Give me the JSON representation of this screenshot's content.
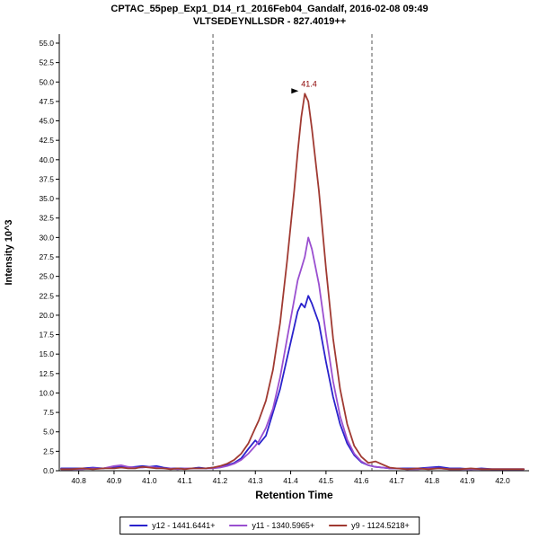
{
  "chart_data": {
    "type": "line",
    "title": "CPTAC_55pep_Exp1_D14_r1_2016Feb04_Gandalf, 2016-02-08 09:49",
    "subtitle": "VLTSEDEYNLLSDR - 827.4019++",
    "xlabel": "Retention Time",
    "ylabel": "Intensity 10^3",
    "xlim": [
      40.745,
      42.075
    ],
    "ylim": [
      0,
      55
    ],
    "y_tick_step": 2.5,
    "x_ticks": [
      40.8,
      40.9,
      41.0,
      41.1,
      41.2,
      41.3,
      41.4,
      41.5,
      41.6,
      41.7,
      41.8,
      41.9,
      42.0
    ],
    "grid": false,
    "legend_position": "bottom",
    "integration_boundaries": [
      41.18,
      41.63
    ],
    "boundary_color": "#555555",
    "peak_annotation": {
      "label": "41.4",
      "x": 41.44,
      "y": 48.5,
      "color": "#8b0000",
      "arrow_color": "#000000"
    },
    "x": [
      40.75,
      40.78,
      40.81,
      40.84,
      40.87,
      40.9,
      40.92,
      40.94,
      40.96,
      40.98,
      41.0,
      41.02,
      41.04,
      41.06,
      41.08,
      41.1,
      41.12,
      41.14,
      41.16,
      41.18,
      41.2,
      41.22,
      41.24,
      41.26,
      41.28,
      41.3,
      41.31,
      41.33,
      41.35,
      41.37,
      41.39,
      41.41,
      41.42,
      41.43,
      41.44,
      41.45,
      41.46,
      41.48,
      41.5,
      41.52,
      41.54,
      41.56,
      41.58,
      41.6,
      41.62,
      41.64,
      41.66,
      41.68,
      41.7,
      41.73,
      41.76,
      41.79,
      41.82,
      41.85,
      41.88,
      41.91,
      41.94,
      41.97,
      42.0,
      42.03,
      42.06
    ],
    "series": [
      {
        "name": "y12 - 1441.6441+",
        "color": "#2a22cc",
        "values": [
          0.3,
          0.3,
          0.3,
          0.4,
          0.3,
          0.5,
          0.5,
          0.4,
          0.5,
          0.6,
          0.5,
          0.6,
          0.4,
          0.3,
          0.3,
          0.3,
          0.3,
          0.4,
          0.3,
          0.4,
          0.5,
          0.7,
          1.0,
          1.6,
          2.8,
          3.9,
          3.4,
          4.5,
          7.5,
          10.5,
          14.5,
          18.5,
          20.5,
          21.5,
          21.0,
          22.5,
          21.5,
          19.0,
          14.0,
          9.5,
          6.0,
          3.5,
          2.0,
          1.1,
          0.7,
          0.5,
          0.4,
          0.3,
          0.3,
          0.3,
          0.3,
          0.4,
          0.5,
          0.3,
          0.3,
          0.2,
          0.3,
          0.2,
          0.2,
          0.2,
          0.2
        ]
      },
      {
        "name": "y11 - 1340.5965+",
        "color": "#9a4fd0",
        "values": [
          0.2,
          0.2,
          0.2,
          0.3,
          0.3,
          0.6,
          0.7,
          0.5,
          0.4,
          0.4,
          0.5,
          0.4,
          0.3,
          0.3,
          0.2,
          0.3,
          0.3,
          0.3,
          0.3,
          0.3,
          0.4,
          0.6,
          0.9,
          1.4,
          2.2,
          3.2,
          3.8,
          5.5,
          8.0,
          12.0,
          17.0,
          22.0,
          24.5,
          26.0,
          27.5,
          30.0,
          28.5,
          24.0,
          17.5,
          11.5,
          7.0,
          4.0,
          2.2,
          1.2,
          0.7,
          0.5,
          0.4,
          0.3,
          0.3,
          0.2,
          0.2,
          0.3,
          0.3,
          0.2,
          0.2,
          0.2,
          0.2,
          0.2,
          0.2,
          0.2,
          0.2
        ]
      },
      {
        "name": "y9 - 1124.5218+",
        "color": "#a03a32",
        "values": [
          0.2,
          0.2,
          0.3,
          0.2,
          0.3,
          0.3,
          0.4,
          0.3,
          0.3,
          0.5,
          0.4,
          0.3,
          0.3,
          0.2,
          0.3,
          0.2,
          0.3,
          0.3,
          0.3,
          0.4,
          0.6,
          0.9,
          1.4,
          2.2,
          3.5,
          5.5,
          6.5,
          9.0,
          13.0,
          19.0,
          27.0,
          36.0,
          41.0,
          45.5,
          48.5,
          47.5,
          44.0,
          36.0,
          26.0,
          17.0,
          10.5,
          6.0,
          3.2,
          1.8,
          1.0,
          1.2,
          0.8,
          0.4,
          0.3,
          0.2,
          0.3,
          0.2,
          0.3,
          0.2,
          0.2,
          0.3,
          0.2,
          0.2,
          0.2,
          0.2,
          0.2
        ]
      }
    ]
  }
}
